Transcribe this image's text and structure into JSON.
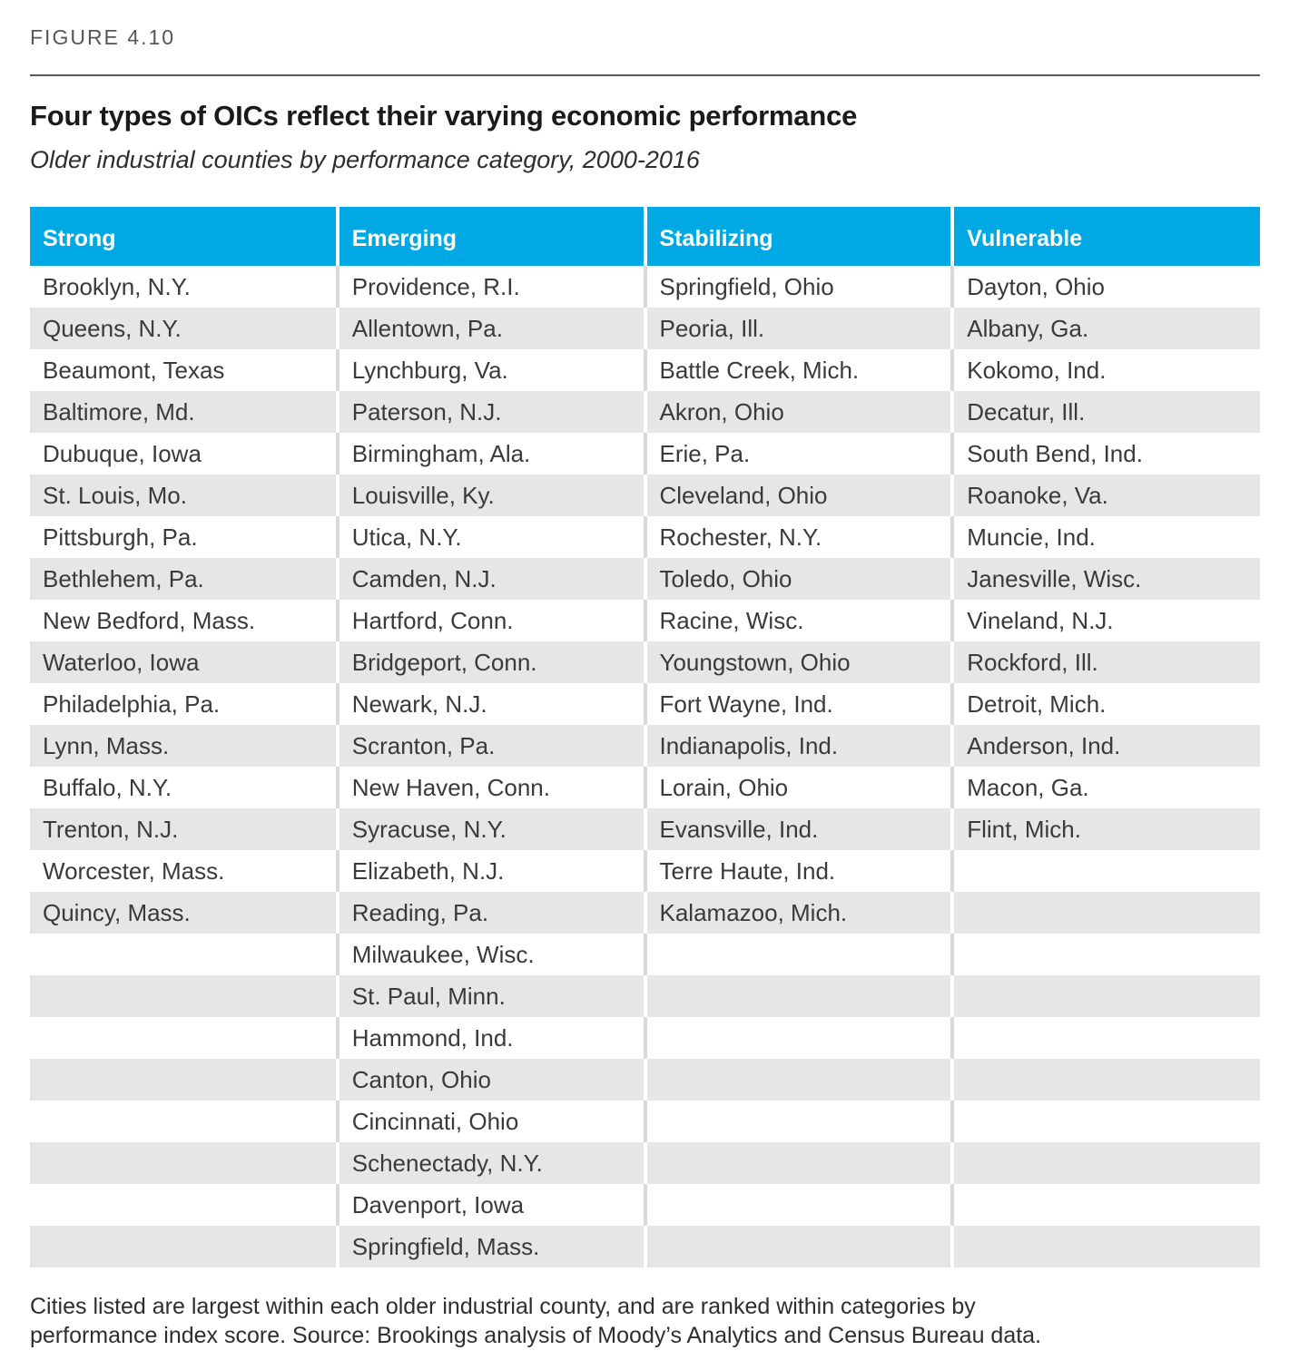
{
  "figure_label": "FIGURE 4.10",
  "title": "Four types of OICs reflect their varying economic performance",
  "subtitle": "Older industrial counties by performance category, 2000-2016",
  "table": {
    "columns": [
      {
        "header": "Strong",
        "cities": [
          "Brooklyn, N.Y.",
          "Queens, N.Y.",
          "Beaumont, Texas",
          "Baltimore, Md.",
          "Dubuque, Iowa",
          "St. Louis, Mo.",
          "Pittsburgh, Pa.",
          "Bethlehem, Pa.",
          "New Bedford, Mass.",
          "Waterloo, Iowa",
          "Philadelphia, Pa.",
          "Lynn, Mass.",
          "Buffalo, N.Y.",
          "Trenton, N.J.",
          "Worcester, Mass.",
          "Quincy, Mass."
        ]
      },
      {
        "header": "Emerging",
        "cities": [
          "Providence, R.I.",
          "Allentown, Pa.",
          "Lynchburg, Va.",
          "Paterson, N.J.",
          "Birmingham, Ala.",
          "Louisville, Ky.",
          "Utica, N.Y.",
          "Camden, N.J.",
          "Hartford, Conn.",
          "Bridgeport, Conn.",
          "Newark, N.J.",
          "Scranton, Pa.",
          "New Haven, Conn.",
          "Syracuse, N.Y.",
          "Elizabeth, N.J.",
          "Reading, Pa.",
          "Milwaukee, Wisc.",
          "St. Paul, Minn.",
          "Hammond, Ind.",
          "Canton, Ohio",
          "Cincinnati, Ohio",
          "Schenectady, N.Y.",
          "Davenport, Iowa",
          "Springfield, Mass."
        ]
      },
      {
        "header": "Stabilizing",
        "cities": [
          "Springfield, Ohio",
          "Peoria, Ill.",
          "Battle Creek, Mich.",
          "Akron, Ohio",
          "Erie, Pa.",
          "Cleveland, Ohio",
          "Rochester, N.Y.",
          "Toledo, Ohio",
          "Racine, Wisc.",
          "Youngstown, Ohio",
          "Fort Wayne, Ind.",
          "Indianapolis, Ind.",
          "Lorain, Ohio",
          "Evansville, Ind.",
          "Terre Haute, Ind.",
          "Kalamazoo, Mich."
        ]
      },
      {
        "header": "Vulnerable",
        "cities": [
          "Dayton, Ohio",
          "Albany, Ga.",
          "Kokomo, Ind.",
          "Decatur, Ill.",
          "South Bend, Ind.",
          "Roanoke, Va.",
          "Muncie, Ind.",
          "Janesville, Wisc.",
          "Vineland, N.J.",
          "Rockford, Ill.",
          "Detroit, Mich.",
          "Anderson, Ind.",
          "Macon, Ga.",
          "Flint, Mich."
        ]
      }
    ],
    "row_count": 24
  },
  "footnote_lines": [
    "Cities listed are largest within each older industrial county, and are ranked within categories by",
    "performance index score. Source: Brookings analysis of Moody’s Analytics and Census Bureau data."
  ],
  "colors": {
    "header_bg": "#00A8E4",
    "header_text": "#FFFFFF",
    "row_stripe": "#E6E6E6",
    "separator_on_white": "#D9D9D9",
    "separator_on_gray": "#FFFFFF",
    "figure_label": "#55565A",
    "rule": "#58595B",
    "title_text": "#1A1A1A",
    "subtitle_text": "#2E2E2E",
    "body_text": "#3A3A3A",
    "footnote_text": "#2E2E2E"
  }
}
